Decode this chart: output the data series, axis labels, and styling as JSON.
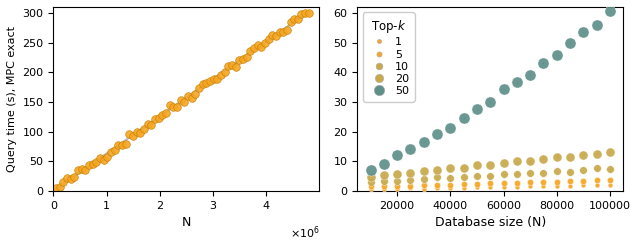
{
  "left_plot": {
    "xlabel": "N",
    "ylabel": "Query time (s), MPC exact",
    "xlim": [
      0,
      5000000
    ],
    "ylim": [
      0,
      310
    ],
    "yticks": [
      0,
      50,
      100,
      150,
      200,
      250,
      300
    ],
    "xticks": [
      0,
      1000000,
      2000000,
      3000000,
      4000000
    ],
    "xtick_labels": [
      "0",
      "1",
      "2",
      "3",
      "4"
    ],
    "scatter_color": "#F5A623",
    "scatter_edgecolor": "#c97f00",
    "line_color": "#bbbbbb",
    "slope": 6.3e-05,
    "n_points": 70,
    "n_start": 50000,
    "n_end": 4800000
  },
  "right_plot": {
    "xlabel": "Database size (N)",
    "xlim": [
      5000,
      105000
    ],
    "ylim": [
      0,
      62
    ],
    "yticks": [
      0,
      10,
      20,
      30,
      40,
      50,
      60
    ],
    "xticks": [
      20000,
      40000,
      60000,
      80000,
      100000
    ]
  },
  "top_k_values": [
    1,
    5,
    10,
    20,
    50
  ],
  "top_k_colors": [
    "#F5A623",
    "#F5A623",
    "#c8a84b",
    "#c8a84b",
    "#5e8f89"
  ],
  "legend_title": "Top-$k$",
  "background_color": "#ffffff"
}
